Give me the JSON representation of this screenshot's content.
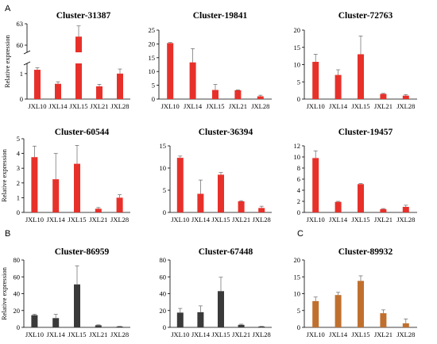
{
  "panel_letters": [
    "A",
    "B",
    "C"
  ],
  "chart_data": [
    {
      "type": "bar",
      "title": "Cluster-31387",
      "panel": "A",
      "ylabel": "Relative expression",
      "categories": [
        "JXL10",
        "JXL14",
        "JXL15",
        "JXL21",
        "JXL28"
      ],
      "values": [
        1.15,
        0.6,
        61.2,
        0.5,
        1.0
      ],
      "errors": [
        0.08,
        0.08,
        1.5,
        0.08,
        0.18
      ],
      "yscale": "broken",
      "yticks": [
        "0",
        "1",
        "60",
        "63"
      ],
      "color": "#e8302a"
    },
    {
      "type": "bar",
      "title": "Cluster-19841",
      "panel": "A",
      "categories": [
        "JXL10",
        "JXL14",
        "JXL15",
        "JXL21",
        "JXL28"
      ],
      "values": [
        20.3,
        13.3,
        3.3,
        3.2,
        1.0
      ],
      "errors": [
        0.2,
        5.0,
        2.0,
        0.15,
        0.4
      ],
      "ylim": [
        0,
        25
      ],
      "yticks": [
        0,
        5,
        10,
        15,
        20,
        25
      ],
      "color": "#e8302a"
    },
    {
      "type": "bar",
      "title": "Cluster-72763",
      "panel": "A",
      "categories": [
        "JXL10",
        "JXL14",
        "JXL15",
        "JXL21",
        "JXL28"
      ],
      "values": [
        10.8,
        7.0,
        13.0,
        1.5,
        1.0
      ],
      "errors": [
        2.2,
        1.5,
        5.3,
        0.15,
        0.3
      ],
      "ylim": [
        0,
        20
      ],
      "yticks": [
        0,
        5,
        10,
        15,
        20
      ],
      "color": "#e8302a"
    },
    {
      "type": "bar",
      "title": "Cluster-60544",
      "panel": "A",
      "ylabel": "Relative expression",
      "categories": [
        "JXL10",
        "JXL14",
        "JXL15",
        "JXL21",
        "JXL28"
      ],
      "values": [
        3.75,
        2.25,
        3.3,
        0.25,
        1.0
      ],
      "errors": [
        0.75,
        1.75,
        1.25,
        0.08,
        0.2
      ],
      "ylim": [
        0,
        5
      ],
      "yticks": [
        0,
        1,
        2,
        3,
        4,
        5
      ],
      "color": "#e8302a"
    },
    {
      "type": "bar",
      "title": "Cluster-36394",
      "panel": "A",
      "categories": [
        "JXL10",
        "JXL14",
        "JXL15",
        "JXL21",
        "JXL28"
      ],
      "values": [
        12.3,
        4.2,
        8.5,
        2.5,
        1.0
      ],
      "errors": [
        0.4,
        3.1,
        0.5,
        0.15,
        0.4
      ],
      "ylim": [
        0,
        15
      ],
      "yticks": [
        0,
        5,
        10,
        15
      ],
      "color": "#e8302a"
    },
    {
      "type": "bar",
      "title": "Cluster-19457",
      "panel": "A",
      "categories": [
        "JXL10",
        "JXL14",
        "JXL15",
        "JXL21",
        "JXL28"
      ],
      "values": [
        9.8,
        1.9,
        5.1,
        0.6,
        1.0
      ],
      "errors": [
        1.3,
        0.1,
        0.1,
        0.1,
        0.3
      ],
      "ylim": [
        0,
        12
      ],
      "yticks": [
        0,
        2,
        4,
        6,
        8,
        10,
        12
      ],
      "color": "#e8302a"
    },
    {
      "type": "bar",
      "title": "Cluster-86959",
      "panel": "B",
      "ylabel": "Relative expression",
      "categories": [
        "JXL10",
        "JXL14",
        "JXL15",
        "JXL21",
        "JXL28"
      ],
      "values": [
        14.5,
        11.0,
        51.0,
        2.5,
        1.0
      ],
      "errors": [
        1.0,
        4.5,
        22.0,
        0.5,
        0.2
      ],
      "ylim": [
        0,
        80
      ],
      "yticks": [
        0,
        20,
        40,
        60,
        80
      ],
      "color": "#3a3a3a"
    },
    {
      "type": "bar",
      "title": "Cluster-67448",
      "panel": "B",
      "categories": [
        "JXL10",
        "JXL14",
        "JXL15",
        "JXL21",
        "JXL28"
      ],
      "values": [
        17.5,
        18.0,
        43.0,
        3.0,
        1.0
      ],
      "errors": [
        5.0,
        7.5,
        16.5,
        0.8,
        0.2
      ],
      "ylim": [
        0,
        80
      ],
      "yticks": [
        0,
        20,
        40,
        60,
        80
      ],
      "color": "#3a3a3a"
    },
    {
      "type": "bar",
      "title": "Cluster-89932",
      "panel": "C",
      "categories": [
        "JXL10",
        "JXL14",
        "JXL15",
        "JXL21",
        "JXL28"
      ],
      "values": [
        7.8,
        9.6,
        13.8,
        4.2,
        1.2
      ],
      "errors": [
        1.2,
        0.8,
        1.5,
        1.0,
        1.3
      ],
      "ylim": [
        0,
        20
      ],
      "yticks": [
        0,
        5,
        10,
        15,
        20
      ],
      "color": "#c0702e"
    }
  ]
}
